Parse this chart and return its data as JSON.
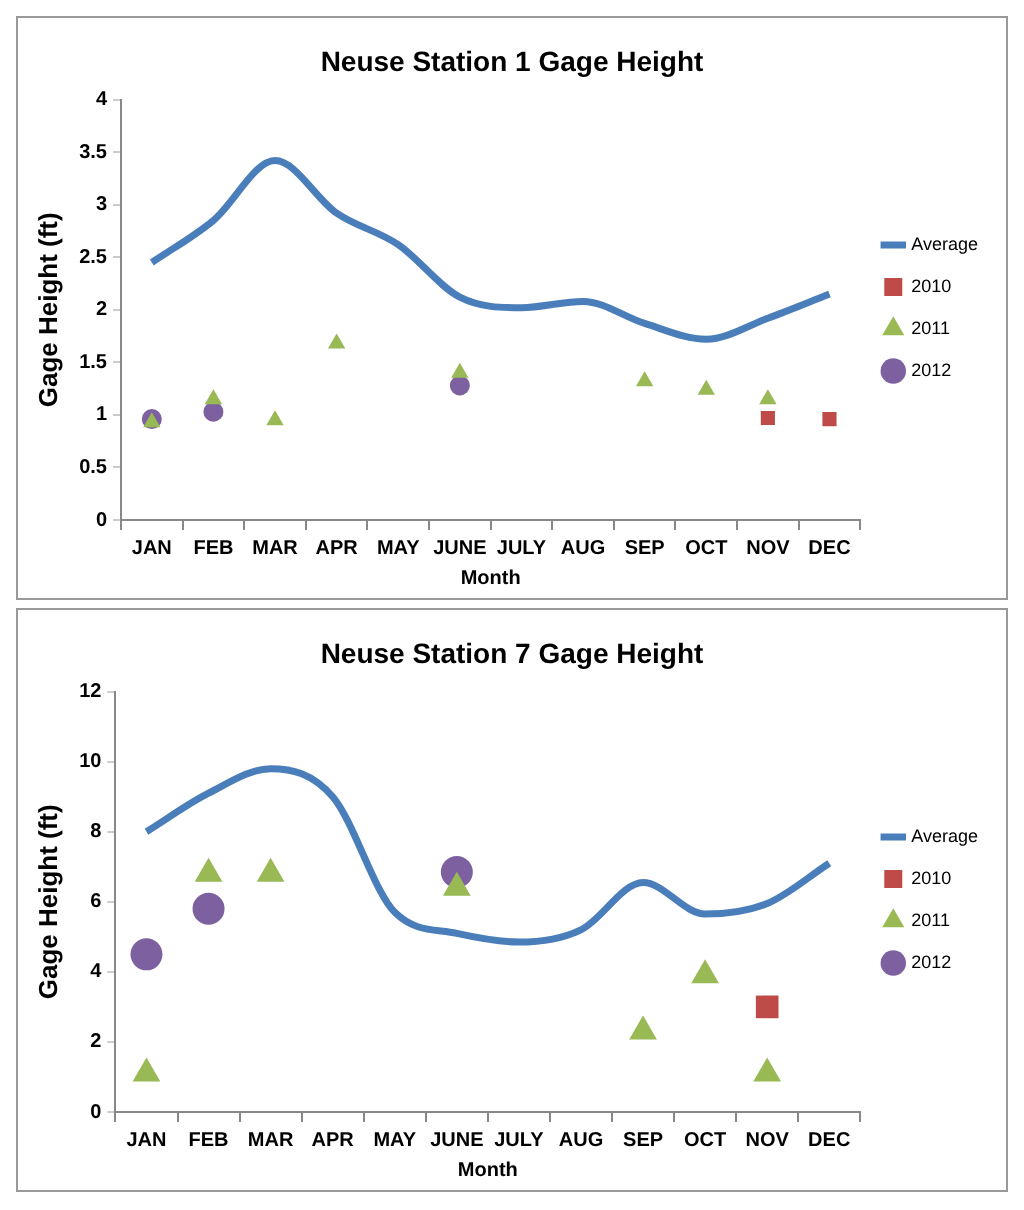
{
  "chart_data": [
    {
      "type": "line",
      "title": "Neuse Station 1 Gage Height",
      "xlabel": "Month",
      "ylabel": "Gage Height (ft)",
      "categories": [
        "JAN",
        "FEB",
        "MAR",
        "APR",
        "MAY",
        "JUNE",
        "JULY",
        "AUG",
        "SEP",
        "OCT",
        "NOV",
        "DEC"
      ],
      "ylim": [
        0,
        4
      ],
      "yticks": [
        0,
        0.5,
        1,
        1.5,
        2,
        2.5,
        3,
        3.5,
        4
      ],
      "grid": false,
      "legend": "right",
      "series": [
        {
          "name": "Average",
          "type": "line",
          "marker": "none",
          "line_style": "solid",
          "color": "#4a7ebb",
          "values": [
            2.45,
            2.85,
            3.42,
            2.92,
            2.62,
            2.12,
            2.02,
            2.08,
            1.87,
            1.72,
            1.92,
            2.15
          ]
        },
        {
          "name": "2010",
          "type": "scatter",
          "marker": "square",
          "color": "#be4b48",
          "values": [
            null,
            null,
            null,
            null,
            null,
            null,
            null,
            null,
            null,
            null,
            0.97,
            0.96
          ]
        },
        {
          "name": "2011",
          "type": "scatter",
          "marker": "triangle",
          "color": "#98b954",
          "values": [
            0.93,
            1.15,
            0.95,
            1.68,
            null,
            1.4,
            null,
            null,
            1.32,
            1.24,
            1.15,
            null
          ]
        },
        {
          "name": "2012",
          "type": "scatter",
          "marker": "circle",
          "color": "#7d60a0",
          "values": [
            0.96,
            1.03,
            null,
            null,
            null,
            1.28,
            null,
            null,
            null,
            null,
            null,
            null
          ]
        }
      ]
    },
    {
      "type": "line",
      "title": "Neuse Station 7 Gage Height",
      "xlabel": "Month",
      "ylabel": "Gage Height (ft)",
      "categories": [
        "JAN",
        "FEB",
        "MAR",
        "APR",
        "MAY",
        "JUNE",
        "JULY",
        "AUG",
        "SEP",
        "OCT",
        "NOV",
        "DEC"
      ],
      "ylim": [
        0,
        12
      ],
      "yticks": [
        0,
        2,
        4,
        6,
        8,
        10,
        12
      ],
      "grid": false,
      "legend": "right",
      "series": [
        {
          "name": "Average",
          "type": "line",
          "marker": "none",
          "line_style": "solid",
          "color": "#4a7ebb",
          "values": [
            8.0,
            9.1,
            9.8,
            9.0,
            5.7,
            5.1,
            4.85,
            5.2,
            6.55,
            5.65,
            5.95,
            7.1
          ]
        },
        {
          "name": "2010",
          "type": "scatter",
          "marker": "square",
          "color": "#be4b48",
          "values": [
            null,
            null,
            null,
            null,
            null,
            null,
            null,
            null,
            null,
            null,
            3.0,
            null
          ]
        },
        {
          "name": "2011",
          "type": "scatter",
          "marker": "triangle",
          "color": "#98b954",
          "values": [
            1.1,
            6.8,
            6.8,
            null,
            null,
            6.4,
            null,
            null,
            2.3,
            3.9,
            1.1,
            null
          ]
        },
        {
          "name": "2012",
          "type": "scatter",
          "marker": "circle",
          "color": "#7d60a0",
          "values": [
            4.5,
            5.8,
            null,
            null,
            null,
            6.85,
            null,
            null,
            null,
            null,
            null,
            null
          ]
        }
      ]
    }
  ]
}
